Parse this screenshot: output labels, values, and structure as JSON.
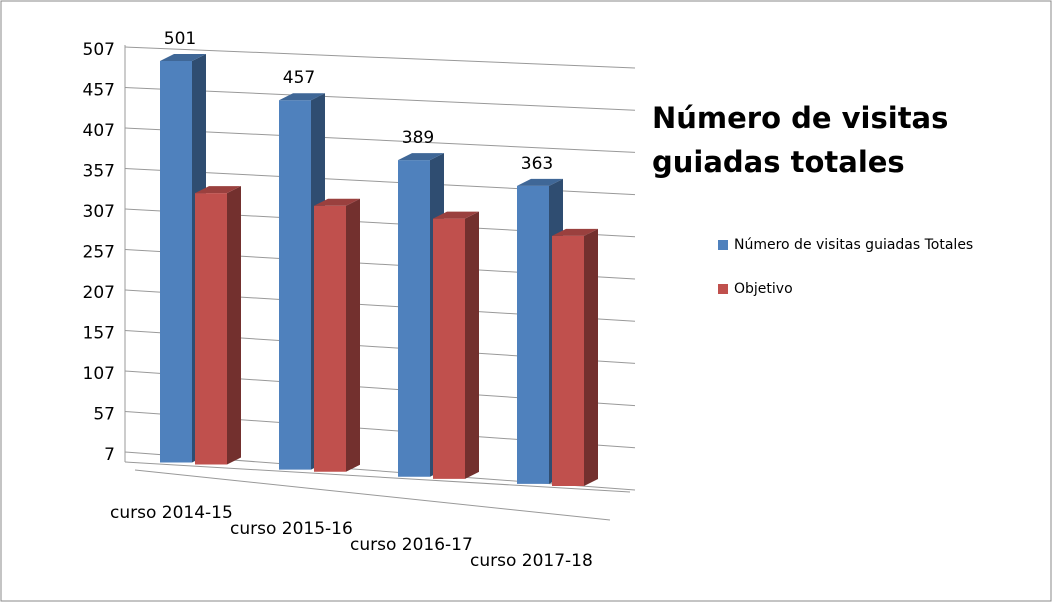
{
  "chart_data": {
    "type": "bar3d",
    "title": "Número de visitas guiadas totales",
    "categories": [
      "curso 2014-15",
      "curso 2015-16",
      "curso 2016-17",
      "curso 2017-18"
    ],
    "series": [
      {
        "name": "Número de visitas guiadas Totales",
        "color": "#4f81bd",
        "values": [
          501,
          457,
          389,
          363
        ]
      },
      {
        "name": "Objetivo",
        "color": "#c0504d",
        "values": [
          340,
          330,
          320,
          305
        ]
      }
    ],
    "ylim": [
      7,
      507
    ],
    "yticks": [
      7,
      57,
      107,
      157,
      207,
      257,
      307,
      357,
      407,
      457,
      507
    ],
    "grid": true
  }
}
